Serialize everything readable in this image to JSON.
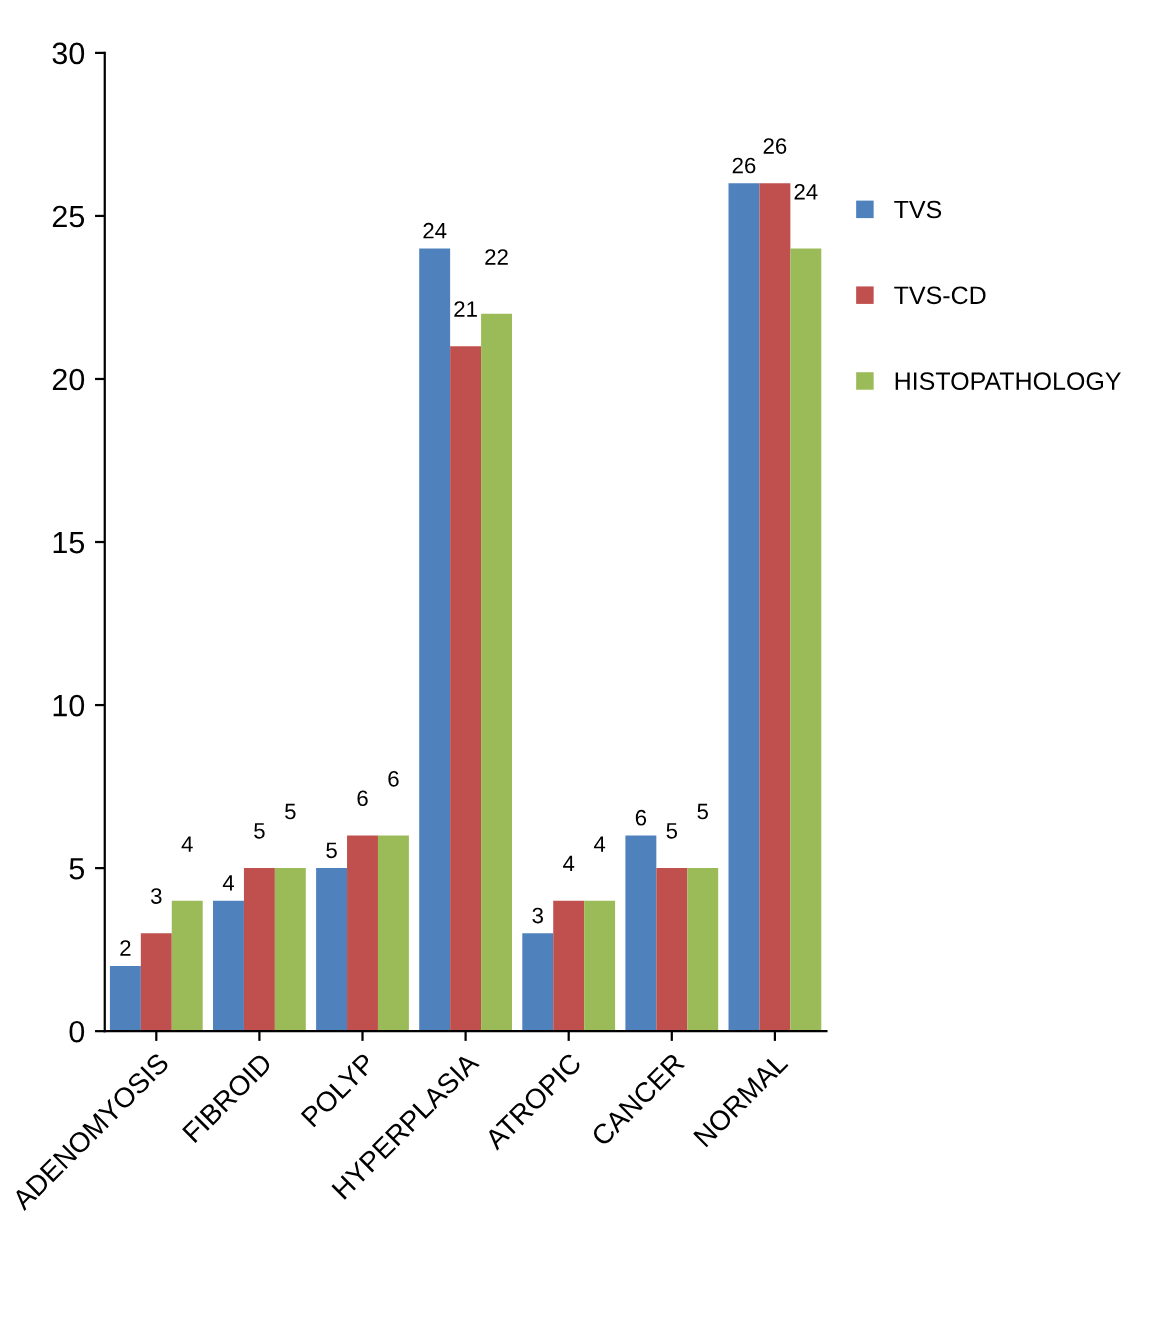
{
  "chart_data": {
    "type": "bar",
    "categories": [
      "ADENOMYOSIS",
      "FIBROID",
      "POLYP",
      "HYPERPLASIA",
      "ATROPIC",
      "CANCER",
      "NORMAL"
    ],
    "series": [
      {
        "name": "TVS",
        "color": "#4f81bd",
        "values": [
          2,
          4,
          5,
          24,
          3,
          6,
          26
        ]
      },
      {
        "name": "TVS-CD",
        "color": "#c0504d",
        "values": [
          3,
          5,
          6,
          21,
          4,
          5,
          26
        ]
      },
      {
        "name": "HISTOPATHOLOGY",
        "color": "#9bbb59",
        "values": [
          4,
          5,
          6,
          22,
          4,
          5,
          24
        ]
      }
    ],
    "ylim": [
      0,
      30
    ],
    "yticks": [
      0,
      5,
      10,
      15,
      20,
      25,
      30
    ],
    "grid": false,
    "legend": "right",
    "data_labels": true
  }
}
